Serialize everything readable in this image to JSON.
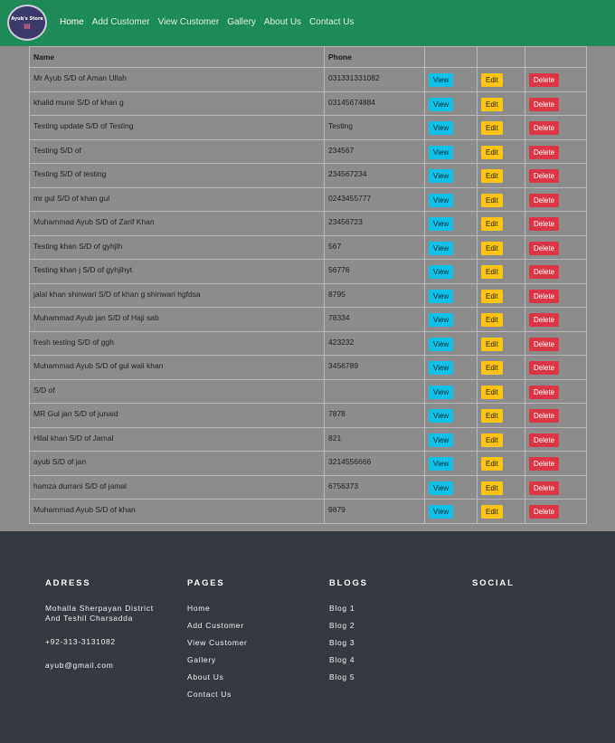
{
  "brand": {
    "logo_text": "Ayub's Store",
    "logo_icon": "shopping-cart-icon"
  },
  "nav": [
    {
      "label": "Home",
      "active": true
    },
    {
      "label": "Add Customer"
    },
    {
      "label": "View Customer"
    },
    {
      "label": "Gallery"
    },
    {
      "label": "About Us"
    },
    {
      "label": "Contact Us"
    }
  ],
  "table": {
    "headers": {
      "name": "Name",
      "phone": "Phone"
    },
    "buttons": {
      "view": "View",
      "edit": "Edit",
      "delete": "Delete"
    },
    "rows": [
      {
        "name": "Mr Ayub S/D of Aman Ullah",
        "phone": "031331331082"
      },
      {
        "name": "khalid munir S/D of khan g",
        "phone": "03145674884"
      },
      {
        "name": "Testing update S/D of Testing",
        "phone": "Testing"
      },
      {
        "name": "Testing S/D of",
        "phone": "234567"
      },
      {
        "name": "Testing S/D of testing",
        "phone": "234567234"
      },
      {
        "name": "mr gul S/D of khan gul",
        "phone": "0243455777"
      },
      {
        "name": "Muhammad Ayub S/D of Zarif Khan",
        "phone": "23456723"
      },
      {
        "name": "Testing khan S/D of gyhjlh",
        "phone": "567"
      },
      {
        "name": "Testing khan j S/D of gyhjlhyt",
        "phone": "56776"
      },
      {
        "name": "jalal khan shinwari S/D of khan g shinwari hgfdsa",
        "phone": "8795"
      },
      {
        "name": "Muhammad Ayub jan S/D of Haji sab",
        "phone": "78334"
      },
      {
        "name": "fresh testing S/D of ggh",
        "phone": "423232"
      },
      {
        "name": "Muhammad Ayub S/D of gul wali khan",
        "phone": "3456789"
      },
      {
        "name": "S/D of",
        "phone": ""
      },
      {
        "name": "MR Gul jan S/D of junaid",
        "phone": "7878"
      },
      {
        "name": "Hilal khan S/D of Jamal",
        "phone": "821"
      },
      {
        "name": "ayub S/D of jan",
        "phone": "3214556666"
      },
      {
        "name": "hamza durrani S/D of jamal",
        "phone": "6756373"
      },
      {
        "name": "Muhammad Ayub S/D of khan",
        "phone": "9879"
      }
    ]
  },
  "footer": {
    "address": {
      "heading": "ADRESS",
      "line1": "Mohalla Sherpayan District",
      "line2": "And Teshil Charsadda",
      "phone": "+92-313-3131082",
      "email": "ayub@gmail.com"
    },
    "pages": {
      "heading": "PAGES",
      "links": [
        "Home",
        "Add Customer",
        "View Customer",
        "Gallery",
        "About Us",
        "Contact Us"
      ]
    },
    "blogs": {
      "heading": "BLOGS",
      "links": [
        "Blog 1",
        "Blog 2",
        "Blog 3",
        "Blog 4",
        "Blog 5"
      ]
    },
    "social": {
      "heading": "SOCIAL"
    }
  },
  "colors": {
    "navbar": "#1e8a57",
    "page_bg": "#8c8c8c",
    "footer": "#343a40",
    "view": "#13c0e8",
    "edit": "#fbc314",
    "delete": "#db3646"
  }
}
